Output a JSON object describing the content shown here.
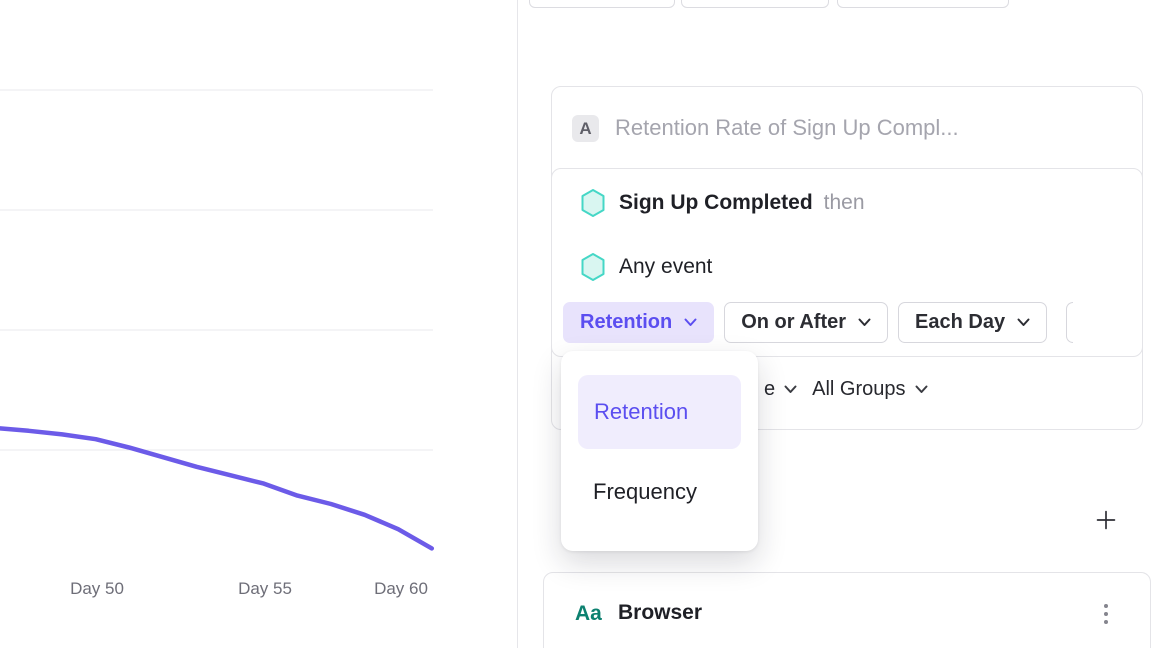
{
  "colors": {
    "accent_purple": "#5B4EF0",
    "accent_purple_button_bg": "#E8E3FC",
    "menu_highlight_bg": "#F0EDFD",
    "line_purple": "#6C5BE8",
    "hexagon_teal_stroke": "#45D7C6",
    "hexagon_teal_fill": "#D9F6F1",
    "property_teal": "#0D8170",
    "placeholder_gray": "#A5A5AE",
    "border_gray": "#E4E4E8"
  },
  "chart_data": {
    "type": "line",
    "title": "",
    "xlabel": "",
    "ylabel": "",
    "x_tick_labels": [
      "Day 50",
      "Day 55",
      "Day 60"
    ],
    "x_tick_days": [
      50,
      55,
      60
    ],
    "x_days": [
      47.15,
      48,
      49,
      50,
      51,
      52,
      53,
      54,
      55,
      56,
      57,
      58,
      59,
      60
    ],
    "series": [
      {
        "name": "Retention",
        "values": [
          11.8,
          11.6,
          11.3,
          10.9,
          10.2,
          9.4,
          8.6,
          7.9,
          7.2,
          6.2,
          5.5,
          4.6,
          3.4,
          1.8
        ]
      }
    ],
    "y_gridlines": [
      10,
      20,
      30,
      40
    ],
    "xlim_days": [
      47.15,
      60
    ],
    "ylim": [
      0,
      47.5
    ],
    "grid": true,
    "legend": false,
    "y_axis_labels_visible": false,
    "y_unit": "percent (estimated; y-axis labels not visible in crop)"
  },
  "card": {
    "badge": "A",
    "title_placeholder": "Retention Rate of Sign Up Compl...",
    "events": [
      {
        "name": "Sign Up Completed",
        "suffix": "then"
      },
      {
        "name": "Any event",
        "suffix": ""
      }
    ],
    "controls": [
      {
        "label": "Retention",
        "selected": true
      },
      {
        "label": "On or After",
        "selected": false
      },
      {
        "label": "Each Day",
        "selected": false
      }
    ],
    "bottom_row": {
      "clipped_label_visible": "e",
      "group_filter": "All Groups"
    }
  },
  "menu": {
    "items": [
      {
        "label": "Retention",
        "selected": true
      },
      {
        "label": "Frequency",
        "selected": false
      }
    ]
  },
  "group_card": {
    "icon_text": "Aa",
    "name": "Browser"
  }
}
